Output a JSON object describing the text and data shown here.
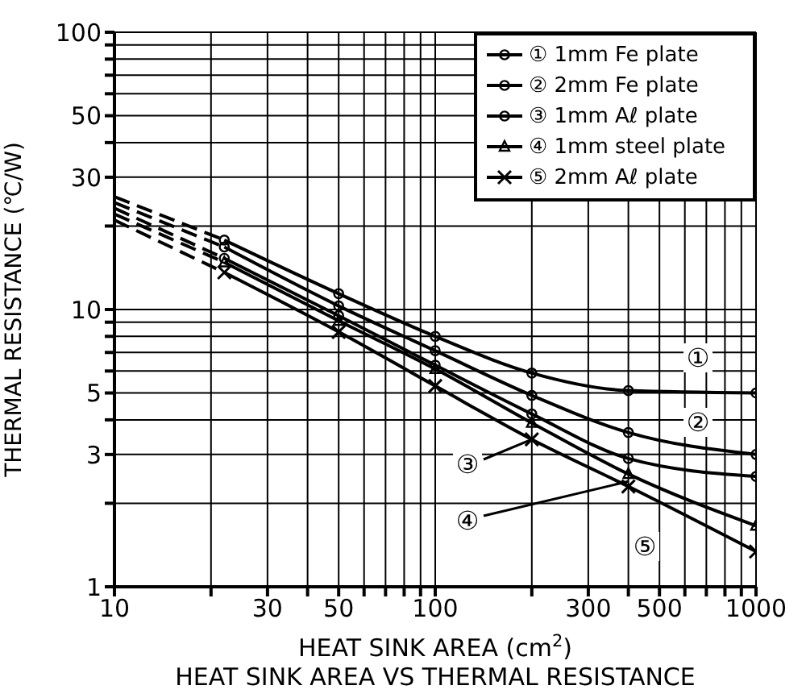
{
  "chart_data": {
    "type": "line",
    "title": "HEAT SINK AREA VS THERMAL RESISTANCE",
    "xlabel": "HEAT SINK AREA (cm$^{2}$)",
    "ylabel": "THERMAL RESISTANCE (℃/W)",
    "log": "xy",
    "xlim": [
      10,
      1000
    ],
    "ylim": [
      1,
      100
    ],
    "xticks": [
      10,
      {
        "value": 20,
        "label": null
      },
      30,
      {
        "value": 40,
        "label": null
      },
      50,
      {
        "value": 60,
        "label": null
      },
      {
        "value": 70,
        "label": null
      },
      {
        "value": 80,
        "label": null
      },
      {
        "value": 90,
        "label": null
      },
      100,
      {
        "value": 200,
        "label": null
      },
      300,
      {
        "value": 400,
        "label": null
      },
      500,
      {
        "value": 600,
        "label": null
      },
      {
        "value": 700,
        "label": null
      },
      {
        "value": 800,
        "label": null
      },
      {
        "value": 900,
        "label": null
      },
      1000
    ],
    "yticks": [
      1,
      {
        "value": 2,
        "label": null
      },
      3,
      {
        "value": 4,
        "label": null
      },
      5,
      {
        "value": 6,
        "label": null
      },
      {
        "value": 7,
        "label": null
      },
      {
        "value": 8,
        "label": null
      },
      {
        "value": 9,
        "label": null
      },
      10,
      {
        "value": 20,
        "label": null
      },
      30,
      {
        "value": 40,
        "label": null
      },
      50,
      {
        "value": 60,
        "label": null
      },
      {
        "value": 70,
        "label": null
      },
      {
        "value": 80,
        "label": null
      },
      {
        "value": 90,
        "label": null
      },
      100
    ],
    "grid": true,
    "legend": "top right",
    "line_style": "solid",
    "series": [
      {
        "name": "① 1mm Fe plate",
        "color": "#000000",
        "marker": "circle",
        "x": [
          22,
          50,
          100,
          200,
          400,
          1000
        ],
        "values": [
          17.8,
          11.4,
          8.0,
          5.9,
          5.1,
          5.0
        ]
      },
      {
        "name": "② 2mm Fe plate",
        "color": "#000000",
        "marker": "circle",
        "x": [
          22,
          50,
          100,
          200,
          400,
          1000
        ],
        "values": [
          16.8,
          10.3,
          7.1,
          4.9,
          3.6,
          3.0
        ]
      },
      {
        "name": "③ 1mm Aℓ plate",
        "color": "#000000",
        "marker": "circle",
        "x": [
          22,
          50,
          100,
          200,
          400,
          1000
        ],
        "values": [
          15.3,
          9.5,
          6.3,
          4.2,
          2.9,
          2.5
        ]
      },
      {
        "name": "④ 1mm steel plate",
        "color": "#000000",
        "marker": "triangle",
        "x": [
          22,
          50,
          100,
          200,
          400,
          1000
        ],
        "values": [
          14.8,
          9.1,
          6.1,
          3.9,
          2.55,
          1.66
        ]
      },
      {
        "name": "⑤ 2mm Aℓ plate",
        "color": "#000000",
        "marker": "cross",
        "x": [
          22,
          50,
          100,
          200,
          400,
          1000
        ],
        "values": [
          13.6,
          8.3,
          5.3,
          3.4,
          2.3,
          1.34
        ]
      },
      {
        "color": "#000000",
        "marker": "none",
        "line_style": "dashed",
        "x": [
          10,
          22
        ],
        "values": [
          25.5,
          17.8
        ]
      },
      {
        "color": "#000000",
        "marker": "none",
        "line_style": "dashed",
        "x": [
          10,
          22
        ],
        "values": [
          24.3,
          16.8
        ]
      },
      {
        "color": "#000000",
        "marker": "none",
        "line_style": "dashed",
        "x": [
          10,
          22
        ],
        "values": [
          23.2,
          15.3
        ]
      },
      {
        "color": "#000000",
        "marker": "none",
        "line_style": "dashed",
        "x": [
          10,
          22
        ],
        "values": [
          22.1,
          14.8
        ]
      },
      {
        "color": "#000000",
        "marker": "none",
        "line_style": "dashed",
        "x": [
          10,
          22
        ],
        "values": [
          21,
          13.6
        ]
      }
    ],
    "annotations": [
      "①",
      "②",
      {
        "text": "③",
        "x": 200,
        "y": 3.4
      },
      {
        "text": "④",
        "x": 400,
        "y": 2.4
      },
      "⑤"
    ]
  }
}
